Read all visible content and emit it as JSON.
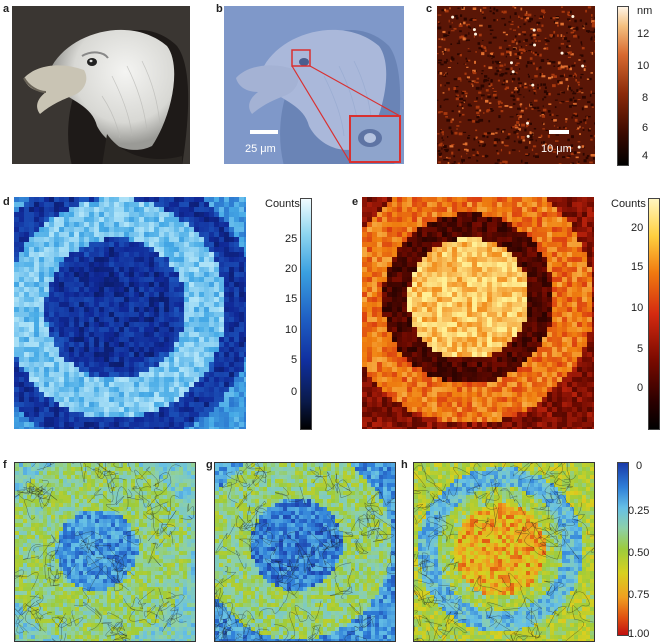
{
  "panels": {
    "a": {
      "label": "a"
    },
    "b": {
      "label": "b",
      "scale_bar": "25 μm"
    },
    "c": {
      "label": "c",
      "scale_bar": "10 μm",
      "colorbar": {
        "unit": "nm",
        "ticks": [
          "12",
          "10",
          "8",
          "6",
          "4"
        ]
      }
    },
    "d": {
      "label": "d",
      "colorbar": {
        "title": "Counts",
        "ticks": [
          "25",
          "20",
          "15",
          "10",
          "5",
          "0"
        ]
      }
    },
    "e": {
      "label": "e",
      "colorbar": {
        "title": "Counts",
        "ticks": [
          "20",
          "15",
          "10",
          "5",
          "0"
        ]
      }
    },
    "f": {
      "label": "f"
    },
    "g": {
      "label": "g"
    },
    "h": {
      "label": "h"
    },
    "fgh_colorbar": {
      "ticks": [
        "0",
        "0.25",
        "0.50",
        "0.75",
        "1.00"
      ]
    }
  },
  "colors": {
    "blue_dark": "#0a1a4a",
    "blue_mid": "#1f5fc4",
    "blue_light": "#8fd6f0",
    "red_dark": "#2b0000",
    "red_mid": "#d42a10",
    "yellow": "#ffe680",
    "afm_dark": "#1a0500",
    "afm_mid": "#8a2a0a"
  }
}
